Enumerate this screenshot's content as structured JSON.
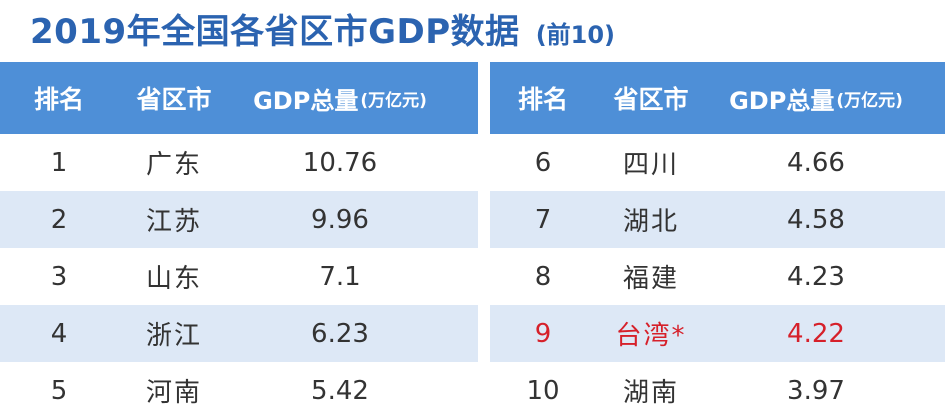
{
  "title": {
    "main": "2019年全国各省区市GDP数据",
    "sub": "(前10)"
  },
  "headers": {
    "rank": "排名",
    "province": "省区市",
    "gdp": "GDP总量",
    "gdp_unit": "(万亿元)"
  },
  "colors": {
    "header_bg": "#4e8fd7",
    "title": "#2b63b0",
    "stripe": "#dde8f6",
    "highlight": "#d6202a"
  },
  "left_rows": [
    {
      "rank": "1",
      "province": "广东",
      "gdp": "10.76"
    },
    {
      "rank": "2",
      "province": "江苏",
      "gdp": "9.96"
    },
    {
      "rank": "3",
      "province": "山东",
      "gdp": "7.1"
    },
    {
      "rank": "4",
      "province": "浙江",
      "gdp": "6.23"
    },
    {
      "rank": "5",
      "province": "河南",
      "gdp": "5.42"
    }
  ],
  "right_rows": [
    {
      "rank": "6",
      "province": "四川",
      "gdp": "4.66"
    },
    {
      "rank": "7",
      "province": "湖北",
      "gdp": "4.58"
    },
    {
      "rank": "8",
      "province": "福建",
      "gdp": "4.23"
    },
    {
      "rank": "9",
      "province": "台湾*",
      "gdp": "4.22",
      "highlight": true
    },
    {
      "rank": "10",
      "province": "湖南",
      "gdp": "3.97"
    }
  ]
}
